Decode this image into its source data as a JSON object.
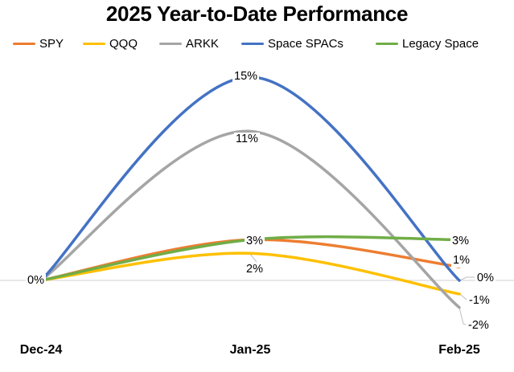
{
  "title": "2025 Year-to-Date Performance",
  "legend": {
    "items": [
      {
        "label": "SPY",
        "color": "#ED7D31"
      },
      {
        "label": "QQQ",
        "color": "#FFC000"
      },
      {
        "label": "ARKK",
        "color": "#A5A5A5"
      },
      {
        "label": "Space SPACs",
        "color": "#4472C4"
      },
      {
        "label": "Legacy Space",
        "color": "#70AD47"
      }
    ]
  },
  "x_axis": {
    "labels": [
      "Dec-24",
      "Jan-25",
      "Feb-25"
    ]
  },
  "point_labels": [
    {
      "series": "all",
      "x": "Dec-24",
      "text": "0%"
    },
    {
      "series": "Space SPACs",
      "x": "Jan-25",
      "text": "15%"
    },
    {
      "series": "ARKK",
      "x": "Jan-25",
      "text": "11%"
    },
    {
      "series": "SPY / Legacy Space",
      "x": "Jan-25",
      "text": "3%"
    },
    {
      "series": "QQQ",
      "x": "Jan-25",
      "text": "2%"
    },
    {
      "series": "Legacy Space",
      "x": "Feb-25",
      "text": "3%"
    },
    {
      "series": "SPY",
      "x": "Feb-25",
      "text": "1%"
    },
    {
      "series": "Space SPACs",
      "x": "Feb-25",
      "text": "0%"
    },
    {
      "series": "QQQ",
      "x": "Feb-25",
      "text": "-1%"
    },
    {
      "series": "ARKK",
      "x": "Feb-25",
      "text": "-2%"
    }
  ],
  "colors": {
    "gridline": "#D9D9D9",
    "leader": "#BFBFBF",
    "text": "#000000",
    "background": "#FFFFFF"
  },
  "chart_data": {
    "type": "line",
    "title": "2025 Year-to-Date Performance",
    "x": [
      "Dec-24",
      "Jan-25",
      "Feb-25"
    ],
    "series": [
      {
        "name": "SPY",
        "color": "#ED7D31",
        "values": [
          0,
          3,
          1
        ]
      },
      {
        "name": "QQQ",
        "color": "#FFC000",
        "values": [
          0,
          2,
          -1
        ]
      },
      {
        "name": "ARKK",
        "color": "#A5A5A5",
        "values": [
          0,
          11,
          -2
        ]
      },
      {
        "name": "Space SPACs",
        "color": "#4472C4",
        "values": [
          0,
          15,
          0
        ]
      },
      {
        "name": "Legacy Space",
        "color": "#70AD47",
        "values": [
          0,
          3,
          3
        ]
      }
    ],
    "unit": "%",
    "smoothed": true,
    "legend_position": "top",
    "gridlines": "zero-line-only",
    "ylim": [
      -2,
      15
    ],
    "data_label_notes": "labels shown at peaks (Jan) and endpoints (Feb); shared 0% at Dec-24"
  }
}
